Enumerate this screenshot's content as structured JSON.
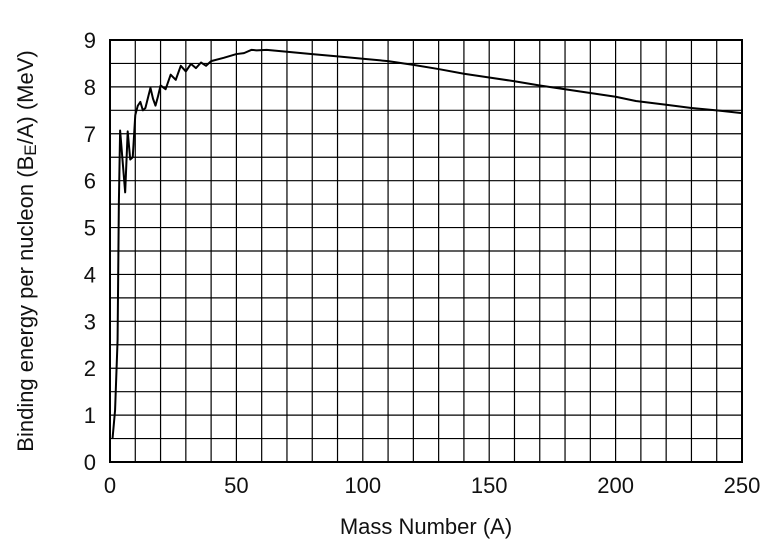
{
  "chart_data": {
    "type": "line",
    "title": "",
    "xlabel": "Mass Number (A)",
    "ylabel": {
      "prefix": "Binding energy per nucleon (B",
      "subscript": "E",
      "suffix": "/A) (MeV)"
    },
    "xlim": [
      0,
      250
    ],
    "ylim": [
      0,
      9
    ],
    "x_ticks": [
      0,
      50,
      100,
      150,
      200,
      250
    ],
    "y_ticks": [
      0,
      1,
      2,
      3,
      4,
      5,
      6,
      7,
      8,
      9
    ],
    "x_grid_step": 10,
    "y_grid_step": 0.5,
    "grid": true,
    "series": [
      {
        "color": "#000000",
        "points": [
          [
            1,
            0.5
          ],
          [
            2,
            1.1
          ],
          [
            3,
            2.6
          ],
          [
            3.5,
            5.5
          ],
          [
            4,
            7.07
          ],
          [
            6,
            5.75
          ],
          [
            7,
            7.05
          ],
          [
            8,
            6.45
          ],
          [
            9,
            6.5
          ],
          [
            10,
            7.4
          ],
          [
            11,
            7.6
          ],
          [
            12,
            7.68
          ],
          [
            13,
            7.5
          ],
          [
            14,
            7.55
          ],
          [
            16,
            7.98
          ],
          [
            17,
            7.75
          ],
          [
            18,
            7.6
          ],
          [
            19,
            7.8
          ],
          [
            20,
            8.03
          ],
          [
            22,
            7.95
          ],
          [
            24,
            8.26
          ],
          [
            26,
            8.15
          ],
          [
            28,
            8.45
          ],
          [
            30,
            8.33
          ],
          [
            32,
            8.49
          ],
          [
            34,
            8.4
          ],
          [
            36,
            8.52
          ],
          [
            38,
            8.45
          ],
          [
            40,
            8.55
          ],
          [
            45,
            8.62
          ],
          [
            50,
            8.7
          ],
          [
            53,
            8.72
          ],
          [
            56,
            8.79
          ],
          [
            58,
            8.78
          ],
          [
            62,
            8.79
          ],
          [
            70,
            8.75
          ],
          [
            80,
            8.7
          ],
          [
            90,
            8.65
          ],
          [
            100,
            8.6
          ],
          [
            110,
            8.55
          ],
          [
            120,
            8.47
          ],
          [
            130,
            8.38
          ],
          [
            140,
            8.28
          ],
          [
            150,
            8.2
          ],
          [
            160,
            8.12
          ],
          [
            170,
            8.03
          ],
          [
            180,
            7.95
          ],
          [
            190,
            7.87
          ],
          [
            200,
            7.79
          ],
          [
            208,
            7.7
          ],
          [
            220,
            7.62
          ],
          [
            230,
            7.55
          ],
          [
            240,
            7.5
          ],
          [
            250,
            7.44
          ]
        ]
      }
    ]
  }
}
